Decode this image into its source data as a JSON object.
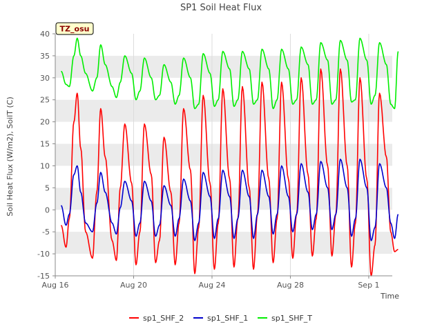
{
  "chart_data": {
    "type": "line",
    "title": "SP1 Soil Heat Flux",
    "xlabel": "Time",
    "ylabel": "Soil Heat Flux (W/m2), SoilT (C)",
    "badge": "TZ_osu",
    "xlim": [
      0,
      17.2
    ],
    "ylim": [
      -15,
      40
    ],
    "yticks": [
      -15,
      -10,
      -5,
      0,
      5,
      10,
      15,
      20,
      25,
      30,
      35,
      40
    ],
    "xticks": [
      {
        "x": 0,
        "label": "Aug 16"
      },
      {
        "x": 4,
        "label": "Aug 20"
      },
      {
        "x": 8,
        "label": "Aug 24"
      },
      {
        "x": 12,
        "label": "Aug 28"
      },
      {
        "x": 16,
        "label": "Sep 1"
      }
    ],
    "grid_bands": true,
    "legend_position": "bottom",
    "series": [
      {
        "name": "sp1_SHF_2",
        "color": "#ff0000",
        "x": [
          0.3,
          0.55,
          0.72,
          0.95,
          1.12,
          1.3,
          1.55,
          1.9,
          2.12,
          2.32,
          2.55,
          2.9,
          3.12,
          3.32,
          3.55,
          3.9,
          4.12,
          4.32,
          4.55,
          4.9,
          5.12,
          5.32,
          5.55,
          5.9,
          6.12,
          6.32,
          6.55,
          6.9,
          7.12,
          7.32,
          7.55,
          7.9,
          8.12,
          8.32,
          8.55,
          8.9,
          9.12,
          9.32,
          9.55,
          9.9,
          10.12,
          10.32,
          10.55,
          10.9,
          11.12,
          11.32,
          11.55,
          11.9,
          12.12,
          12.32,
          12.55,
          12.9,
          13.12,
          13.32,
          13.55,
          13.9,
          14.12,
          14.32,
          14.55,
          14.9,
          15.12,
          15.32,
          15.55,
          15.9,
          16.12,
          16.32,
          16.55,
          16.9,
          17.12,
          17.32,
          17.5
        ],
        "y": [
          -3.5,
          -8.5,
          -2,
          20,
          26.5,
          14,
          -5,
          -11,
          4,
          23,
          12,
          -7,
          -11.5,
          5,
          19.5,
          6,
          -12.5,
          -5,
          19.5,
          8,
          -12,
          -7,
          16.5,
          4,
          -12.5,
          -3,
          23,
          9,
          -14.5,
          -4,
          26,
          6,
          -13.5,
          -3,
          27.5,
          7,
          -13,
          -2,
          28,
          5,
          -13.5,
          -1,
          29,
          7,
          -12,
          -2,
          29,
          7,
          -11,
          -1,
          30,
          8,
          -10.5,
          -2,
          32,
          10,
          -10.5,
          -1,
          32,
          10,
          -13,
          -3,
          30,
          7,
          -15,
          -8,
          26.5,
          12,
          -5,
          -9.5,
          -9
        ]
      },
      {
        "name": "sp1_SHF_1",
        "color": "#0000cc",
        "x": [
          0.3,
          0.55,
          0.72,
          0.95,
          1.12,
          1.3,
          1.55,
          1.9,
          2.12,
          2.32,
          2.55,
          2.9,
          3.12,
          3.32,
          3.55,
          3.9,
          4.12,
          4.32,
          4.55,
          4.9,
          5.12,
          5.32,
          5.55,
          5.9,
          6.12,
          6.32,
          6.55,
          6.9,
          7.12,
          7.32,
          7.55,
          7.9,
          8.12,
          8.32,
          8.55,
          8.9,
          9.12,
          9.32,
          9.55,
          9.9,
          10.12,
          10.32,
          10.55,
          10.9,
          11.12,
          11.32,
          11.55,
          11.9,
          12.12,
          12.32,
          12.55,
          12.9,
          13.12,
          13.32,
          13.55,
          13.9,
          14.12,
          14.32,
          14.55,
          14.9,
          15.12,
          15.32,
          15.55,
          15.9,
          16.12,
          16.32,
          16.55,
          16.9,
          17.12,
          17.32,
          17.5
        ],
        "y": [
          1,
          -3.5,
          -1,
          8,
          10,
          4,
          -3,
          -5,
          1.5,
          8.5,
          4,
          -3,
          -5.5,
          0.5,
          6.5,
          2,
          -6,
          -3,
          6.5,
          2,
          -6,
          -3.5,
          5.5,
          1,
          -6,
          -2,
          7,
          2,
          -7,
          -3,
          8.5,
          3,
          -6.5,
          -2,
          9,
          3,
          -6.5,
          -2,
          9,
          3,
          -6.5,
          -1,
          9,
          3,
          -5.5,
          -1,
          10,
          3,
          -5,
          -1,
          10.5,
          4,
          -4.5,
          -1,
          11,
          5,
          -4.5,
          -1,
          11.5,
          5,
          -6,
          -2,
          11.5,
          5,
          -7,
          -4,
          10.5,
          5,
          -3,
          -6.5,
          -1
        ]
      },
      {
        "name": "sp1_SHF_T",
        "color": "#00ee00",
        "x": [
          0.3,
          0.55,
          0.72,
          0.95,
          1.12,
          1.3,
          1.55,
          1.9,
          2.12,
          2.32,
          2.55,
          2.9,
          3.12,
          3.32,
          3.55,
          3.9,
          4.12,
          4.32,
          4.55,
          4.9,
          5.12,
          5.32,
          5.55,
          5.9,
          6.12,
          6.32,
          6.55,
          6.9,
          7.12,
          7.32,
          7.55,
          7.9,
          8.12,
          8.32,
          8.55,
          8.9,
          9.12,
          9.32,
          9.55,
          9.9,
          10.12,
          10.32,
          10.55,
          10.9,
          11.12,
          11.32,
          11.55,
          11.9,
          12.12,
          12.32,
          12.55,
          12.9,
          13.12,
          13.32,
          13.55,
          13.9,
          14.12,
          14.32,
          14.55,
          14.9,
          15.12,
          15.32,
          15.55,
          15.9,
          16.12,
          16.32,
          16.55,
          16.9,
          17.12,
          17.32,
          17.5
        ],
        "y": [
          31.5,
          28.5,
          28,
          35,
          39,
          35,
          31,
          27,
          30,
          37.5,
          33,
          28,
          25.5,
          29,
          35,
          31,
          25,
          27,
          34.5,
          30,
          25,
          26,
          33,
          29,
          24,
          26,
          34.5,
          30,
          23,
          24,
          35.5,
          31,
          23.5,
          25,
          36,
          32,
          23.5,
          25,
          36,
          32,
          24,
          25,
          36.5,
          32,
          23,
          25,
          36.5,
          32,
          24,
          25,
          37,
          33,
          24,
          25,
          38,
          34,
          24,
          25,
          38.5,
          34,
          24.5,
          25,
          39,
          34,
          24,
          26,
          38,
          33,
          24,
          23,
          36
        ]
      }
    ]
  }
}
